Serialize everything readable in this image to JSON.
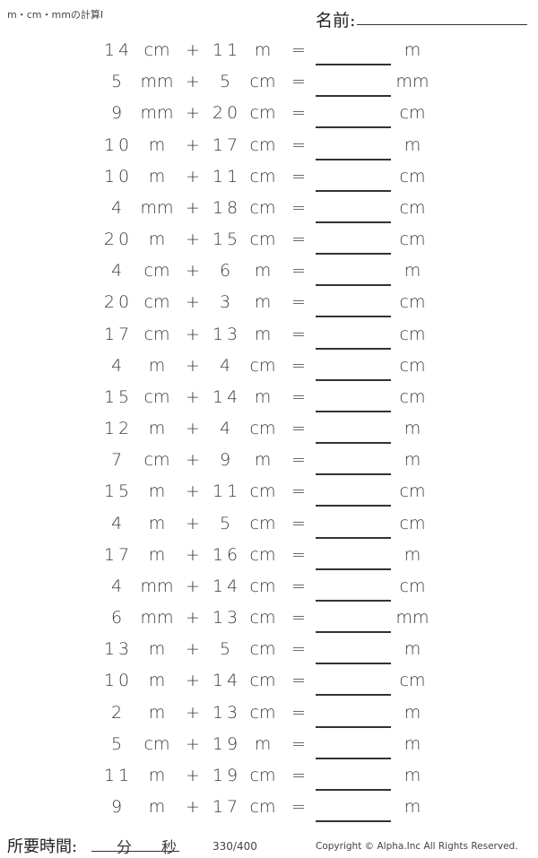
{
  "header": {
    "title": "m・cm・mmの計算Ⅰ",
    "name_label": "名前:"
  },
  "problems": [
    {
      "a": "14",
      "ua": "cm",
      "op": "+",
      "b": "11",
      "ub": "m",
      "eq": "=",
      "ru": "m"
    },
    {
      "a": "5",
      "ua": "mm",
      "op": "+",
      "b": "5",
      "ub": "cm",
      "eq": "=",
      "ru": "mm"
    },
    {
      "a": "9",
      "ua": "mm",
      "op": "+",
      "b": "20",
      "ub": "cm",
      "eq": "=",
      "ru": "cm"
    },
    {
      "a": "10",
      "ua": "m",
      "op": "+",
      "b": "17",
      "ub": "cm",
      "eq": "=",
      "ru": "m"
    },
    {
      "a": "10",
      "ua": "m",
      "op": "+",
      "b": "11",
      "ub": "cm",
      "eq": "=",
      "ru": "cm"
    },
    {
      "a": "4",
      "ua": "mm",
      "op": "+",
      "b": "18",
      "ub": "cm",
      "eq": "=",
      "ru": "cm"
    },
    {
      "a": "20",
      "ua": "m",
      "op": "+",
      "b": "15",
      "ub": "cm",
      "eq": "=",
      "ru": "cm"
    },
    {
      "a": "4",
      "ua": "cm",
      "op": "+",
      "b": "6",
      "ub": "m",
      "eq": "=",
      "ru": "m"
    },
    {
      "a": "20",
      "ua": "cm",
      "op": "+",
      "b": "3",
      "ub": "m",
      "eq": "=",
      "ru": "cm"
    },
    {
      "a": "17",
      "ua": "cm",
      "op": "+",
      "b": "13",
      "ub": "m",
      "eq": "=",
      "ru": "cm"
    },
    {
      "a": "4",
      "ua": "m",
      "op": "+",
      "b": "4",
      "ub": "cm",
      "eq": "=",
      "ru": "cm"
    },
    {
      "a": "15",
      "ua": "cm",
      "op": "+",
      "b": "14",
      "ub": "m",
      "eq": "=",
      "ru": "cm"
    },
    {
      "a": "12",
      "ua": "m",
      "op": "+",
      "b": "4",
      "ub": "cm",
      "eq": "=",
      "ru": "m"
    },
    {
      "a": "7",
      "ua": "cm",
      "op": "+",
      "b": "9",
      "ub": "m",
      "eq": "=",
      "ru": "m"
    },
    {
      "a": "15",
      "ua": "m",
      "op": "+",
      "b": "11",
      "ub": "cm",
      "eq": "=",
      "ru": "cm"
    },
    {
      "a": "4",
      "ua": "m",
      "op": "+",
      "b": "5",
      "ub": "cm",
      "eq": "=",
      "ru": "cm"
    },
    {
      "a": "17",
      "ua": "m",
      "op": "+",
      "b": "16",
      "ub": "cm",
      "eq": "=",
      "ru": "m"
    },
    {
      "a": "4",
      "ua": "mm",
      "op": "+",
      "b": "14",
      "ub": "cm",
      "eq": "=",
      "ru": "cm"
    },
    {
      "a": "6",
      "ua": "mm",
      "op": "+",
      "b": "13",
      "ub": "cm",
      "eq": "=",
      "ru": "mm"
    },
    {
      "a": "13",
      "ua": "m",
      "op": "+",
      "b": "5",
      "ub": "cm",
      "eq": "=",
      "ru": "m"
    },
    {
      "a": "10",
      "ua": "m",
      "op": "+",
      "b": "14",
      "ub": "cm",
      "eq": "=",
      "ru": "cm"
    },
    {
      "a": "2",
      "ua": "m",
      "op": "+",
      "b": "13",
      "ub": "cm",
      "eq": "=",
      "ru": "m"
    },
    {
      "a": "5",
      "ua": "cm",
      "op": "+",
      "b": "19",
      "ub": "m",
      "eq": "=",
      "ru": "m"
    },
    {
      "a": "11",
      "ua": "m",
      "op": "+",
      "b": "19",
      "ub": "cm",
      "eq": "=",
      "ru": "m"
    },
    {
      "a": "9",
      "ua": "m",
      "op": "+",
      "b": "17",
      "ub": "cm",
      "eq": "=",
      "ru": "m"
    }
  ],
  "footer": {
    "time_label": "所要時間:",
    "minutes": "分",
    "seconds": "秒",
    "page": "330/400",
    "copyright": "Copyright © Alpha.Inc All Rights Reserved."
  }
}
